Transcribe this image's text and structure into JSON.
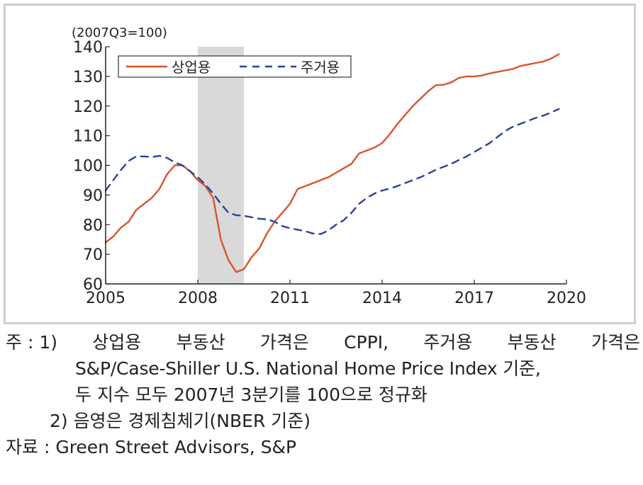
{
  "chart_data": {
    "type": "line",
    "unit_label": "(2007Q3=100)",
    "ylim": [
      60,
      140
    ],
    "yticks": [
      60,
      70,
      80,
      90,
      100,
      110,
      120,
      130,
      140
    ],
    "xlim": [
      2005.0,
      2020.0
    ],
    "xticks": [
      "2005",
      "2008",
      "2011",
      "2014",
      "2017",
      "2020"
    ],
    "recession_shade": {
      "start": 2008.0,
      "end": 2009.5,
      "color": "#d9d9d9"
    },
    "legend_position": "top-left",
    "series": [
      {
        "name": "상업용",
        "color": "#d9532b",
        "dash": "solid",
        "points": [
          [
            2005.0,
            74
          ],
          [
            2005.25,
            76
          ],
          [
            2005.5,
            79
          ],
          [
            2005.75,
            81
          ],
          [
            2006.0,
            85
          ],
          [
            2006.25,
            87
          ],
          [
            2006.5,
            89
          ],
          [
            2006.75,
            92
          ],
          [
            2007.0,
            97
          ],
          [
            2007.25,
            100
          ],
          [
            2007.5,
            100
          ],
          [
            2007.75,
            98
          ],
          [
            2008.0,
            95
          ],
          [
            2008.25,
            93
          ],
          [
            2008.5,
            89
          ],
          [
            2008.75,
            75
          ],
          [
            2009.0,
            68
          ],
          [
            2009.25,
            64
          ],
          [
            2009.5,
            65
          ],
          [
            2009.75,
            69
          ],
          [
            2010.0,
            72
          ],
          [
            2010.25,
            77
          ],
          [
            2010.5,
            81
          ],
          [
            2010.75,
            84
          ],
          [
            2011.0,
            87
          ],
          [
            2011.25,
            92
          ],
          [
            2011.5,
            93
          ],
          [
            2011.75,
            94
          ],
          [
            2012.0,
            95
          ],
          [
            2012.25,
            96
          ],
          [
            2012.5,
            97.5
          ],
          [
            2012.75,
            99
          ],
          [
            2013.0,
            100.5
          ],
          [
            2013.25,
            104
          ],
          [
            2013.5,
            105
          ],
          [
            2013.75,
            106
          ],
          [
            2014.0,
            107.5
          ],
          [
            2014.25,
            110.5
          ],
          [
            2014.5,
            114
          ],
          [
            2014.75,
            117
          ],
          [
            2015.0,
            120
          ],
          [
            2015.25,
            122.5
          ],
          [
            2015.5,
            125
          ],
          [
            2015.75,
            127
          ],
          [
            2016.0,
            127.2
          ],
          [
            2016.25,
            128
          ],
          [
            2016.5,
            129.5
          ],
          [
            2016.75,
            130
          ],
          [
            2017.0,
            130
          ],
          [
            2017.25,
            130.3
          ],
          [
            2017.5,
            131
          ],
          [
            2017.75,
            131.5
          ],
          [
            2018.0,
            132
          ],
          [
            2018.25,
            132.5
          ],
          [
            2018.5,
            133.5
          ],
          [
            2018.75,
            134
          ],
          [
            2019.0,
            134.5
          ],
          [
            2019.25,
            135
          ],
          [
            2019.5,
            136
          ],
          [
            2019.75,
            137.5
          ]
        ]
      },
      {
        "name": "주거용",
        "color": "#2b3f9e",
        "dash": "dashed",
        "points": [
          [
            2005.0,
            91.5
          ],
          [
            2005.25,
            95
          ],
          [
            2005.5,
            98.5
          ],
          [
            2005.75,
            101.5
          ],
          [
            2006.0,
            103
          ],
          [
            2006.25,
            103
          ],
          [
            2006.5,
            102.8
          ],
          [
            2006.75,
            103.2
          ],
          [
            2007.0,
            102.5
          ],
          [
            2007.25,
            101
          ],
          [
            2007.5,
            100
          ],
          [
            2007.75,
            98
          ],
          [
            2008.0,
            96
          ],
          [
            2008.25,
            93.5
          ],
          [
            2008.5,
            90.5
          ],
          [
            2008.75,
            87
          ],
          [
            2009.0,
            84
          ],
          [
            2009.25,
            83.2
          ],
          [
            2009.5,
            83
          ],
          [
            2009.75,
            82.5
          ],
          [
            2010.0,
            82
          ],
          [
            2010.25,
            81.8
          ],
          [
            2010.5,
            81
          ],
          [
            2010.75,
            79.5
          ],
          [
            2011.0,
            78.8
          ],
          [
            2011.25,
            78.3
          ],
          [
            2011.5,
            77.8
          ],
          [
            2011.75,
            77
          ],
          [
            2012.0,
            76.8
          ],
          [
            2012.25,
            78
          ],
          [
            2012.5,
            80
          ],
          [
            2012.75,
            81.5
          ],
          [
            2013.0,
            84
          ],
          [
            2013.25,
            87
          ],
          [
            2013.5,
            89
          ],
          [
            2013.75,
            90.5
          ],
          [
            2014.0,
            91.5
          ],
          [
            2014.25,
            92.2
          ],
          [
            2014.5,
            93
          ],
          [
            2014.75,
            94
          ],
          [
            2015.0,
            95
          ],
          [
            2015.25,
            96
          ],
          [
            2015.5,
            97.2
          ],
          [
            2015.75,
            98.5
          ],
          [
            2016.0,
            99.5
          ],
          [
            2016.25,
            100.5
          ],
          [
            2016.5,
            101.8
          ],
          [
            2016.75,
            103
          ],
          [
            2017.0,
            104.5
          ],
          [
            2017.25,
            106
          ],
          [
            2017.5,
            107.5
          ],
          [
            2017.75,
            109.5
          ],
          [
            2018.0,
            111.5
          ],
          [
            2018.25,
            113
          ],
          [
            2018.5,
            114
          ],
          [
            2018.75,
            115
          ],
          [
            2019.0,
            116
          ],
          [
            2019.25,
            116.8
          ],
          [
            2019.5,
            117.8
          ],
          [
            2019.75,
            119
          ]
        ]
      }
    ]
  },
  "notes": {
    "note1_prefix": "주 : 1)",
    "note1_words": [
      "상업용",
      "부동산",
      "가격은",
      "CPPI,",
      "주거용",
      "부동산",
      "가격은"
    ],
    "note1_line2": "S&P/Case-Shiller U.S. National Home Price Index 기준,",
    "note1_line3": "두 지수 모두 2007년 3분기를 100으로 정규화",
    "note2": "2) 음영은 경제침체기(NBER 기준)",
    "source": "자료 : Green Street Advisors, S&P"
  }
}
